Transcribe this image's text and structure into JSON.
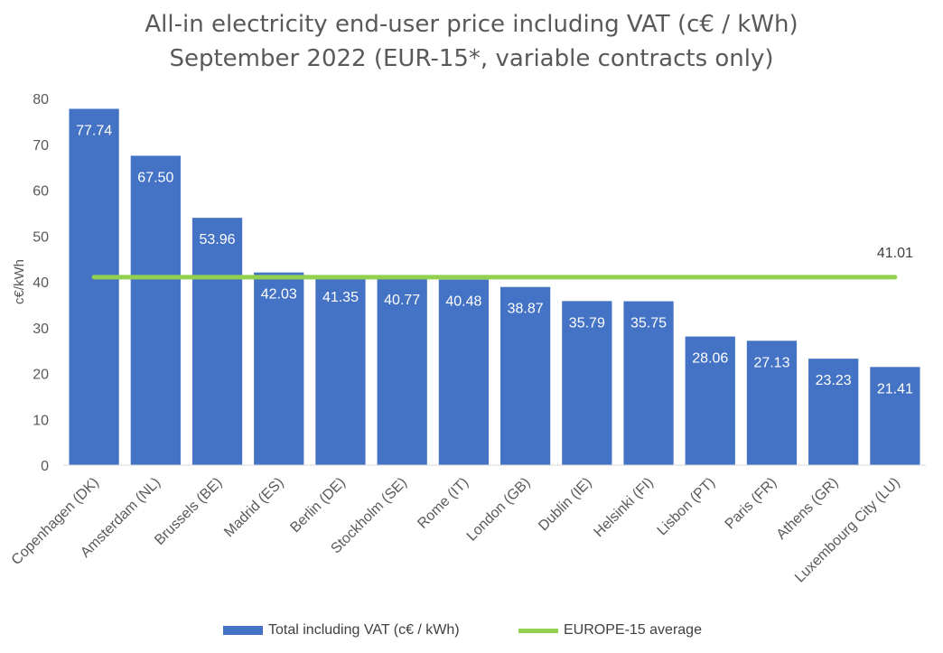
{
  "chart_data": {
    "type": "bar",
    "title": "All-in electricity end-user price including VAT (c€ / kWh)",
    "subtitle": "September 2022 (EUR-15*, variable contracts only)",
    "xlabel": "",
    "ylabel": "c€/kWh",
    "ylim": [
      0,
      80
    ],
    "yticks": [
      0,
      10,
      20,
      30,
      40,
      50,
      60,
      70,
      80
    ],
    "grid": false,
    "legend_position": "bottom",
    "categories": [
      "Copenhagen (DK)",
      "Amsterdam (NL)",
      "Brussels (BE)",
      "Madrid (ES)",
      "Berlin (DE)",
      "Stockholm (SE)",
      "Rome (IT)",
      "London (GB)",
      "Dublin (IE)",
      "Helsinki (FI)",
      "Lisbon (PT)",
      "Paris (FR)",
      "Athens (GR)",
      "Luxembourg City (LU)"
    ],
    "series": [
      {
        "name": "Total including VAT (c€ / kWh)",
        "type": "bar",
        "color": "#4472C4",
        "values": [
          77.74,
          67.5,
          53.96,
          42.03,
          41.35,
          40.77,
          40.48,
          38.87,
          35.79,
          35.75,
          28.06,
          27.13,
          23.23,
          21.41
        ],
        "labels": [
          "77.74",
          "67.50",
          "53.96",
          "42.03",
          "41.35",
          "40.77",
          "40.48",
          "38.87",
          "35.79",
          "35.75",
          "28.06",
          "27.13",
          "23.23",
          "21.41"
        ]
      },
      {
        "name": "EUROPE-15 average",
        "type": "line",
        "color": "#92D050",
        "value": 41.01,
        "label": "41.01"
      }
    ]
  }
}
